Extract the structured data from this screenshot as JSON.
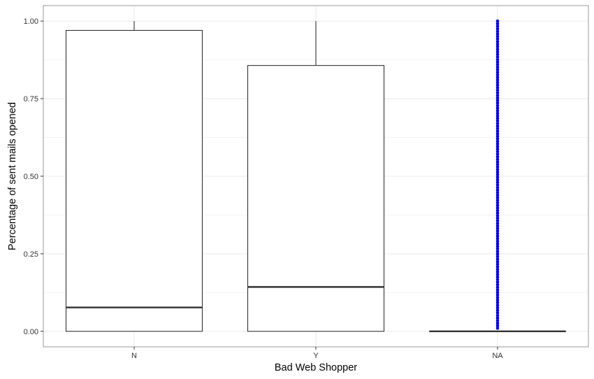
{
  "chart_data": {
    "type": "box",
    "title": "",
    "xlabel": "Bad Web Shopper",
    "ylabel": "Percentage of sent mails opened",
    "categories": [
      "N",
      "Y",
      "NA"
    ],
    "ylim": [
      -0.05,
      1.05
    ],
    "yticks": [
      0,
      0.25,
      0.5,
      0.75,
      1
    ],
    "ytick_labels": [
      "0.00",
      "0.25",
      "0.50",
      "0.75",
      "1.00"
    ],
    "grid": true,
    "legend": "none",
    "boxes": [
      {
        "category": "N",
        "min": 0,
        "q1": 0,
        "median": 0.077,
        "q3": 0.97,
        "max": 1
      },
      {
        "category": "Y",
        "min": 0,
        "q1": 0,
        "median": 0.143,
        "q3": 0.857,
        "max": 1
      },
      {
        "category": "NA",
        "min": 0,
        "q1": 0,
        "median": 0,
        "q3": 0,
        "max": 0
      }
    ],
    "outliers": [
      {
        "category": "NA",
        "y_from": 0.01,
        "y_to": 1,
        "color": "#0000cc",
        "note_dense": true
      }
    ],
    "colors": {
      "box_stroke": "#333333",
      "median": "#333333",
      "outlier": "#0000cc",
      "grid": "#ebebeb",
      "panel_border": "#999999"
    }
  }
}
